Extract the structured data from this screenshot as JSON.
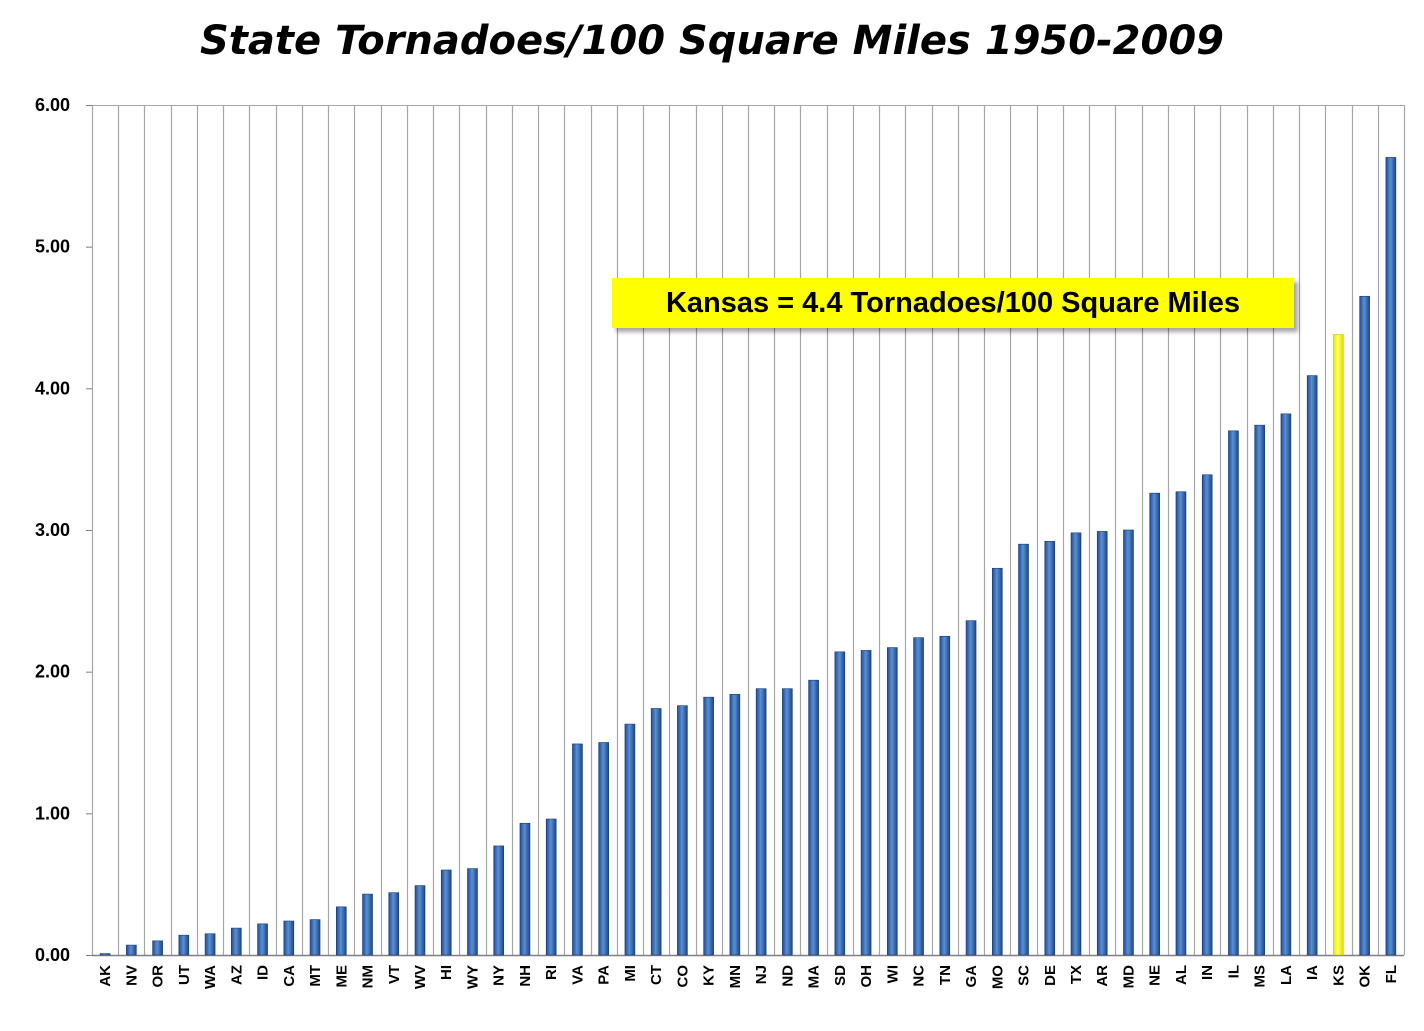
{
  "chart_data": {
    "type": "bar",
    "title": "State Tornadoes/100 Square Miles 1950-2009",
    "xlabel": "",
    "ylabel": "",
    "ylim": [
      0,
      6
    ],
    "yticks": [
      "0.00",
      "1.00",
      "2.00",
      "3.00",
      "4.00",
      "5.00",
      "6.00"
    ],
    "grid": "vertical",
    "legend": "none",
    "categories": [
      "AK",
      "NV",
      "OR",
      "UT",
      "WA",
      "AZ",
      "ID",
      "CA",
      "MT",
      "ME",
      "NM",
      "VT",
      "WV",
      "HI",
      "WY",
      "NY",
      "NH",
      "RI",
      "VA",
      "PA",
      "MI",
      "CT",
      "CO",
      "KY",
      "MN",
      "NJ",
      "ND",
      "MA",
      "SD",
      "OH",
      "WI",
      "NC",
      "TN",
      "GA",
      "MO",
      "SC",
      "DE",
      "TX",
      "AR",
      "MD",
      "NE",
      "AL",
      "IN",
      "IL",
      "MS",
      "LA",
      "IA",
      "KS",
      "OK",
      "FL"
    ],
    "values": [
      0.01,
      0.07,
      0.1,
      0.14,
      0.15,
      0.19,
      0.22,
      0.24,
      0.25,
      0.34,
      0.43,
      0.44,
      0.49,
      0.6,
      0.61,
      0.77,
      0.93,
      0.96,
      1.49,
      1.5,
      1.63,
      1.74,
      1.76,
      1.82,
      1.84,
      1.88,
      1.88,
      1.94,
      2.14,
      2.15,
      2.17,
      2.24,
      2.25,
      2.36,
      2.73,
      2.9,
      2.92,
      2.98,
      2.99,
      3.0,
      3.26,
      3.27,
      3.39,
      3.7,
      3.74,
      3.82,
      4.09,
      4.38,
      4.65,
      5.63
    ],
    "highlight": "KS",
    "annotation": "Kansas = 4.4 Tornadoes/100 Square Miles"
  },
  "colors": {
    "bar": "#3a6ab0",
    "bar_highlight": "#ffff00",
    "gridline": "#a6a6a6",
    "annotation_bg": "#ffff00"
  }
}
